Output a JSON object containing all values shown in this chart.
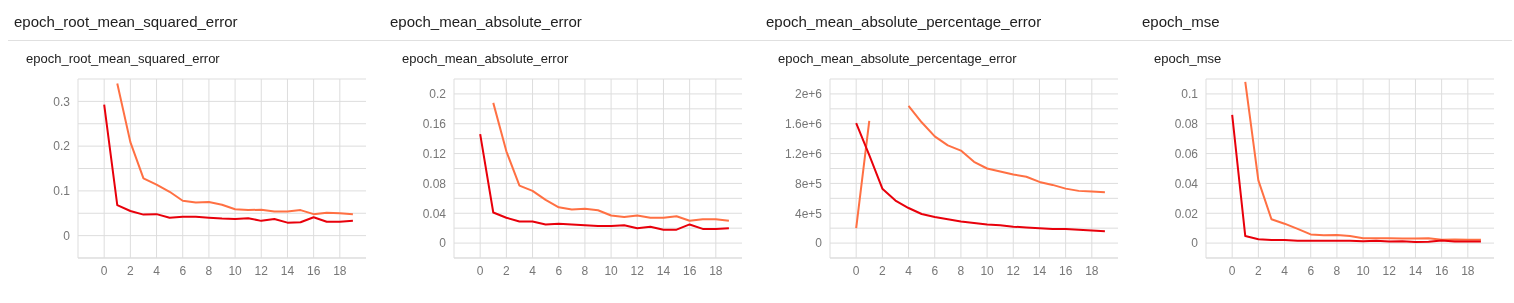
{
  "chart_data": [
    {
      "type": "line",
      "title": "epoch_root_mean_squared_error",
      "subtitle": "epoch_root_mean_squared_error",
      "x": [
        0,
        1,
        2,
        3,
        4,
        5,
        6,
        7,
        8,
        9,
        10,
        11,
        12,
        13,
        14,
        15,
        16,
        17,
        18,
        19
      ],
      "xlim": [
        -2,
        20
      ],
      "xticks": [
        0,
        2,
        4,
        6,
        8,
        10,
        12,
        14,
        16,
        18
      ],
      "ylim": [
        -0.05,
        0.35
      ],
      "yticks": [
        {
          "value": -0.05,
          "label": null
        },
        0,
        {
          "value": 0.05,
          "label": null
        },
        0.1,
        {
          "value": 0.15,
          "label": null
        },
        0.2,
        {
          "value": 0.25,
          "label": null
        },
        0.3,
        {
          "value": 0.35,
          "label": null
        }
      ],
      "grid": true,
      "marker": "none",
      "line_style": "solid",
      "series": [
        {
          "color": "#ff7043",
          "values": [
            null,
            0.34,
            0.209,
            0.128,
            0.114,
            0.098,
            0.078,
            0.074,
            0.075,
            0.069,
            0.059,
            0.057,
            0.058,
            0.054,
            0.054,
            0.057,
            0.048,
            0.051,
            0.05,
            0.048
          ]
        },
        {
          "color": "#e8000b",
          "values": [
            0.293,
            0.068,
            0.055,
            0.047,
            0.048,
            0.04,
            0.042,
            0.042,
            0.04,
            0.038,
            0.037,
            0.039,
            0.033,
            0.037,
            0.029,
            0.03,
            0.041,
            0.031,
            0.031,
            0.033
          ]
        }
      ]
    },
    {
      "type": "line",
      "title": "epoch_mean_absolute_error",
      "subtitle": "epoch_mean_absolute_error",
      "x": [
        0,
        1,
        2,
        3,
        4,
        5,
        6,
        7,
        8,
        9,
        10,
        11,
        12,
        13,
        14,
        15,
        16,
        17,
        18,
        19
      ],
      "xlim": [
        -2,
        20
      ],
      "xticks": [
        0,
        2,
        4,
        6,
        8,
        10,
        12,
        14,
        16,
        18
      ],
      "ylim": [
        -0.02,
        0.22
      ],
      "yticks": [
        {
          "value": -0.02,
          "label": null
        },
        0,
        {
          "value": 0.02,
          "label": null
        },
        0.04,
        {
          "value": 0.06,
          "label": null
        },
        0.08,
        {
          "value": 0.1,
          "label": null
        },
        0.12,
        {
          "value": 0.14,
          "label": null
        },
        0.16,
        {
          "value": 0.18,
          "label": null
        },
        0.2,
        {
          "value": 0.22,
          "label": null
        }
      ],
      "grid": true,
      "marker": "none",
      "line_style": "solid",
      "series": [
        {
          "color": "#ff7043",
          "values": [
            null,
            0.188,
            0.123,
            0.077,
            0.07,
            0.058,
            0.048,
            0.045,
            0.046,
            0.044,
            0.037,
            0.035,
            0.037,
            0.034,
            0.034,
            0.036,
            0.03,
            0.032,
            0.032,
            0.03
          ]
        },
        {
          "color": "#e8000b",
          "values": [
            0.146,
            0.041,
            0.034,
            0.029,
            0.029,
            0.025,
            0.026,
            0.025,
            0.024,
            0.023,
            0.023,
            0.024,
            0.02,
            0.022,
            0.018,
            0.018,
            0.025,
            0.019,
            0.019,
            0.02
          ]
        }
      ]
    },
    {
      "type": "line",
      "title": "epoch_mean_absolute_percentage_error",
      "subtitle": "epoch_mean_absolute_percentage_error",
      "x": [
        0,
        1,
        2,
        3,
        4,
        5,
        6,
        7,
        8,
        9,
        10,
        11,
        12,
        13,
        14,
        15,
        16,
        17,
        18,
        19
      ],
      "xlim": [
        -2,
        20
      ],
      "xticks": [
        0,
        2,
        4,
        6,
        8,
        10,
        12,
        14,
        16,
        18
      ],
      "ylim": [
        -200000,
        2200000
      ],
      "yticks": [
        {
          "value": -200000,
          "label": null
        },
        0,
        {
          "value": 200000,
          "label": null
        },
        {
          "value": 400000,
          "label": "4e+5"
        },
        {
          "value": 600000,
          "label": null
        },
        {
          "value": 800000,
          "label": "8e+5"
        },
        {
          "value": 1000000,
          "label": null
        },
        {
          "value": 1200000,
          "label": "1.2e+6"
        },
        {
          "value": 1400000,
          "label": null
        },
        {
          "value": 1600000,
          "label": "1.6e+6"
        },
        {
          "value": 1800000,
          "label": null
        },
        {
          "value": 2000000,
          "label": "2e+6"
        },
        {
          "value": 2200000,
          "label": null
        }
      ],
      "grid": true,
      "marker": "none",
      "line_style": "solid",
      "series": [
        {
          "color": "#ff7043",
          "values": [
            200000,
            1640000,
            null,
            null,
            1840000,
            1620000,
            1430000,
            1310000,
            1240000,
            1090000,
            1000000,
            960000,
            920000,
            890000,
            820000,
            780000,
            730000,
            700000,
            690000,
            680000
          ]
        },
        {
          "color": "#e8000b",
          "values": [
            1610000,
            1180000,
            730000,
            570000,
            470000,
            390000,
            350000,
            320000,
            290000,
            270000,
            250000,
            240000,
            220000,
            210000,
            200000,
            190000,
            190000,
            180000,
            170000,
            160000
          ]
        }
      ]
    },
    {
      "type": "line",
      "title": "epoch_mse",
      "subtitle": "epoch_mse",
      "x": [
        0,
        1,
        2,
        3,
        4,
        5,
        6,
        7,
        8,
        9,
        10,
        11,
        12,
        13,
        14,
        15,
        16,
        17,
        18,
        19
      ],
      "xlim": [
        -2,
        20
      ],
      "xticks": [
        0,
        2,
        4,
        6,
        8,
        10,
        12,
        14,
        16,
        18
      ],
      "ylim": [
        -0.01,
        0.11
      ],
      "yticks": [
        {
          "value": -0.01,
          "label": null
        },
        0,
        {
          "value": 0.01,
          "label": null
        },
        0.02,
        {
          "value": 0.03,
          "label": null
        },
        0.04,
        {
          "value": 0.05,
          "label": null
        },
        0.06,
        {
          "value": 0.07,
          "label": null
        },
        0.08,
        {
          "value": 0.09,
          "label": null
        },
        0.1,
        {
          "value": 0.11,
          "label": null
        }
      ],
      "grid": true,
      "marker": "none",
      "line_style": "solid",
      "series": [
        {
          "color": "#ff7043",
          "values": [
            null,
            0.108,
            0.042,
            0.016,
            0.013,
            0.0095,
            0.0058,
            0.0053,
            0.0055,
            0.0048,
            0.0033,
            0.0033,
            0.0033,
            0.003,
            0.003,
            0.0032,
            0.0022,
            0.0024,
            0.0023,
            0.0022
          ]
        },
        {
          "color": "#e8000b",
          "values": [
            0.086,
            0.0047,
            0.0026,
            0.002,
            0.002,
            0.0015,
            0.0015,
            0.0015,
            0.0015,
            0.0015,
            0.0012,
            0.0015,
            0.001,
            0.0012,
            0.0008,
            0.0009,
            0.0017,
            0.001,
            0.001,
            0.0011
          ]
        }
      ]
    }
  ]
}
